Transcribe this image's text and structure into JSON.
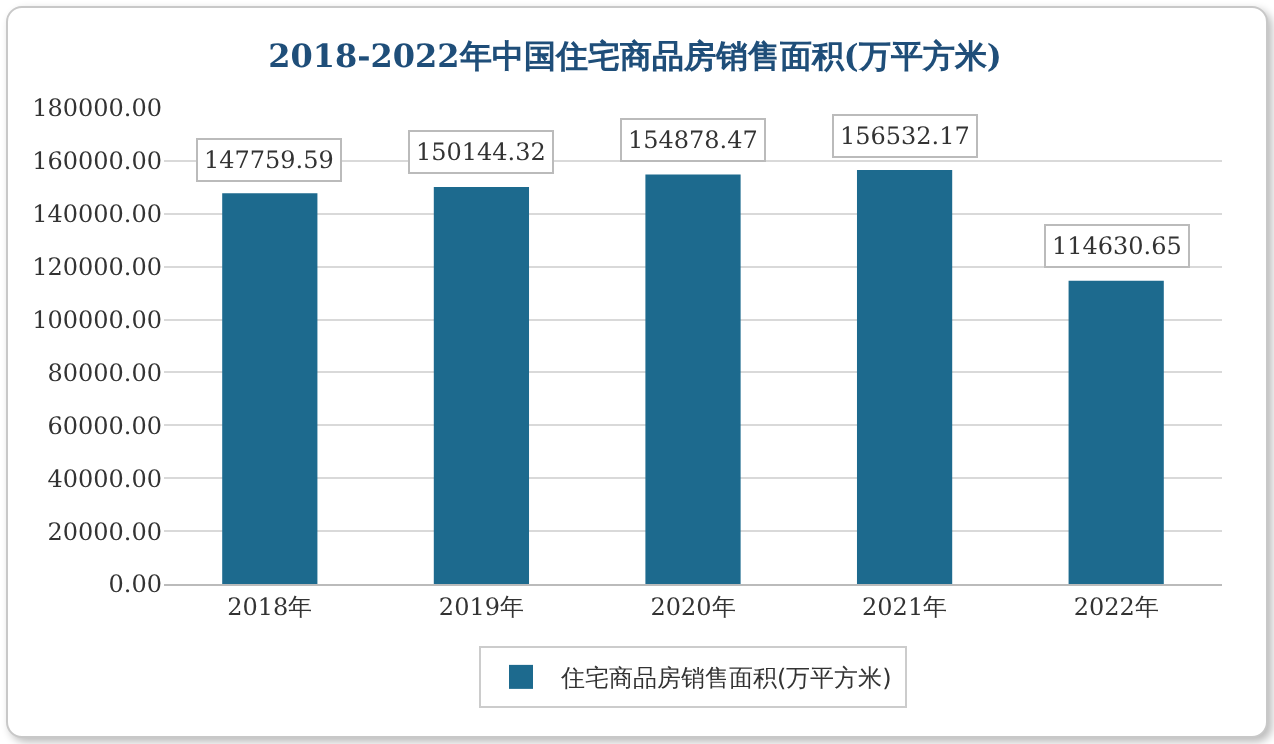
{
  "chart_data": {
    "type": "bar",
    "title": "2018-2022年中国住宅商品房销售面积(万平方米)",
    "categories": [
      "2018年",
      "2019年",
      "2020年",
      "2021年",
      "2022年"
    ],
    "series": [
      {
        "name": "住宅商品房销售面积(万平方米)",
        "color": "#1d6a8e",
        "values": [
          147759.59,
          150144.32,
          154878.47,
          156532.17,
          114630.65
        ]
      }
    ],
    "ylim": [
      0,
      180000
    ],
    "yticks": [
      {
        "value": 0,
        "label": "0.00"
      },
      {
        "value": 20000,
        "label": "20000.00"
      },
      {
        "value": 40000,
        "label": "40000.00"
      },
      {
        "value": 60000,
        "label": "60000.00"
      },
      {
        "value": 80000,
        "label": "80000.00"
      },
      {
        "value": 100000,
        "label": "100000.00"
      },
      {
        "value": 120000,
        "label": "120000.00"
      },
      {
        "value": 140000,
        "label": "140000.00"
      },
      {
        "value": 160000,
        "label": "160000.00"
      },
      {
        "value": 180000,
        "label": "180000.00"
      }
    ],
    "grid": "y",
    "legend": "bottom",
    "data_labels": true
  }
}
